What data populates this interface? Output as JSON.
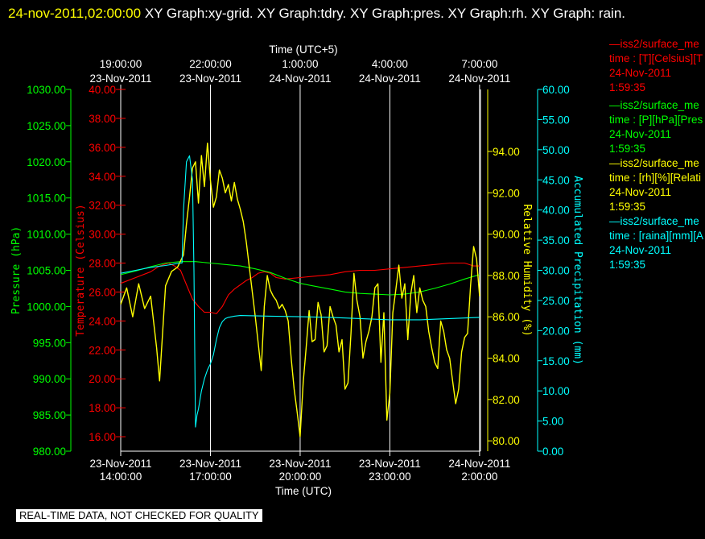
{
  "header": {
    "timestamp": "24-nov-2011,02:00:00",
    "titles_text": "  XY Graph:xy-grid.  XY Graph:tdry.  XY Graph:pres.  XY Graph:rh.  XY Graph: rain."
  },
  "colors": {
    "temperature": "#ff0000",
    "pressure": "#00ff00",
    "humidity": "#ffff00",
    "rain": "#00ffff",
    "axes": "#ffffff",
    "grid": "#ffffff"
  },
  "legend": [
    {
      "line1": "iss2/surface_me",
      "line2": "time : [T][Celsius][T",
      "line3": "24-Nov-2011",
      "line4": "1:59:35",
      "color": "#ff0000"
    },
    {
      "line1": "iss2/surface_me",
      "line2": "time : [P][hPa][Pres",
      "line3": "24-Nov-2011",
      "line4": "1:59:35",
      "color": "#00ff00"
    },
    {
      "line1": "iss2/surface_me",
      "line2": "time : [rh][%][Relati",
      "line3": "24-Nov-2011",
      "line4": "1:59:35",
      "color": "#ffff00"
    },
    {
      "line1": "iss2/surface_me",
      "line2": "time : [raina][mm][A",
      "line3": "24-Nov-2011",
      "line4": "1:59:35",
      "color": "#00ffff"
    }
  ],
  "footer": {
    "text": "REAL-TIME DATA, NOT CHECKED FOR QUALITY"
  },
  "chart_data": {
    "type": "line",
    "xlabel_bottom": "Time (UTC)",
    "xlabel_top": "Time (UTC+5)",
    "x_range_hours": [
      0,
      12.03
    ],
    "x_ticks_bottom": [
      {
        "x": 0,
        "date": "23-Nov-2011",
        "time": "14:00:00"
      },
      {
        "x": 3,
        "date": "23-Nov-2011",
        "time": "17:00:00"
      },
      {
        "x": 6,
        "date": "23-Nov-2011",
        "time": "20:00:00"
      },
      {
        "x": 9,
        "date": "23-Nov-2011",
        "time": "23:00:00"
      },
      {
        "x": 12,
        "date": "24-Nov-2011",
        "time": "2:00:00"
      }
    ],
    "x_ticks_top": [
      {
        "x": 0,
        "time": "19:00:00",
        "date": "23-Nov-2011"
      },
      {
        "x": 3,
        "time": "22:00:00",
        "date": "23-Nov-2011"
      },
      {
        "x": 6,
        "time": "1:00:00",
        "date": "24-Nov-2011"
      },
      {
        "x": 9,
        "time": "4:00:00",
        "date": "24-Nov-2011"
      },
      {
        "x": 12,
        "time": "7:00:00",
        "date": "24-Nov-2011"
      }
    ],
    "axes": {
      "pressure": {
        "label": "Pressure (hPa)",
        "range": [
          980,
          1030
        ],
        "ticks": [
          "980.00",
          "985.00",
          "990.00",
          "995.00",
          "1000.00",
          "1005.00",
          "1010.00",
          "1015.00",
          "1020.00",
          "1025.00",
          "1030.00"
        ]
      },
      "temperature": {
        "label": "Temperature (Celsius)",
        "range": [
          15,
          40
        ],
        "ticks": [
          "16.00",
          "18.00",
          "20.00",
          "22.00",
          "24.00",
          "26.00",
          "28.00",
          "30.00",
          "32.00",
          "34.00",
          "36.00",
          "38.00",
          "40.00"
        ]
      },
      "humidity": {
        "label": "Relative Humidity (%)",
        "range": [
          79.5,
          97
        ],
        "ticks": [
          "80.00",
          "82.00",
          "84.00",
          "86.00",
          "88.00",
          "90.00",
          "92.00",
          "94.00"
        ]
      },
      "rain": {
        "label": "Accumulated Precipitation (mm)",
        "range": [
          0,
          60
        ],
        "ticks": [
          "0.00",
          "5.00",
          "10.00",
          "15.00",
          "20.00",
          "25.00",
          "30.00",
          "35.00",
          "40.00",
          "45.00",
          "50.00",
          "55.00",
          "60.00"
        ]
      }
    },
    "series": [
      {
        "name": "temperature",
        "x": [
          0,
          0.5,
          1.0,
          1.3,
          1.6,
          1.8,
          2.0,
          2.2,
          2.4,
          2.6,
          2.8,
          3.0,
          3.2,
          3.4,
          3.6,
          3.8,
          4.0,
          4.2,
          4.4,
          4.6,
          4.8,
          5.0,
          5.2,
          5.5,
          6.0,
          6.5,
          7.0,
          7.5,
          8.0,
          8.5,
          9.0,
          9.5,
          10.0,
          10.5,
          11.0,
          11.5,
          11.8,
          12.0
        ],
        "y": [
          26.6,
          27.0,
          27.4,
          27.8,
          28.0,
          27.8,
          27.5,
          26.5,
          25.5,
          25.0,
          24.6,
          24.6,
          24.5,
          25.0,
          25.8,
          26.2,
          26.5,
          26.8,
          27.0,
          27.3,
          27.4,
          27.3,
          27.0,
          26.9,
          27.0,
          27.1,
          27.2,
          27.4,
          27.5,
          27.5,
          27.6,
          27.7,
          27.8,
          27.9,
          28.0,
          28.0,
          27.8,
          27.8
        ]
      },
      {
        "name": "pressure",
        "x": [
          0,
          0.5,
          1.0,
          1.5,
          2.0,
          2.5,
          3.0,
          3.5,
          4.0,
          4.5,
          5.0,
          5.5,
          6.0,
          6.5,
          7.0,
          7.5,
          8.0,
          8.5,
          9.0,
          9.5,
          10.0,
          10.5,
          11.0,
          11.5,
          12.0
        ],
        "y": [
          1004.4,
          1004.9,
          1005.5,
          1006.0,
          1006.2,
          1006.2,
          1006.0,
          1005.8,
          1005.6,
          1005.2,
          1004.7,
          1003.9,
          1003.2,
          1002.8,
          1002.4,
          1002.0,
          1001.8,
          1001.7,
          1001.6,
          1001.7,
          1002.0,
          1002.5,
          1003.1,
          1003.8,
          1004.4
        ]
      },
      {
        "name": "humidity",
        "x": [
          0,
          0.2,
          0.4,
          0.6,
          0.8,
          1.0,
          1.2,
          1.3,
          1.5,
          1.7,
          1.9,
          2.1,
          2.2,
          2.3,
          2.4,
          2.5,
          2.6,
          2.7,
          2.8,
          2.9,
          3.0,
          3.1,
          3.2,
          3.3,
          3.4,
          3.5,
          3.6,
          3.7,
          3.8,
          3.9,
          4.0,
          4.1,
          4.2,
          4.3,
          4.4,
          4.5,
          4.6,
          4.7,
          4.8,
          4.9,
          5.0,
          5.1,
          5.2,
          5.3,
          5.4,
          5.5,
          5.6,
          5.7,
          5.8,
          5.9,
          6.0,
          6.1,
          6.2,
          6.3,
          6.4,
          6.5,
          6.6,
          6.7,
          6.8,
          6.9,
          7.0,
          7.1,
          7.2,
          7.3,
          7.4,
          7.5,
          7.6,
          7.7,
          7.8,
          7.9,
          8.0,
          8.1,
          8.2,
          8.3,
          8.4,
          8.5,
          8.6,
          8.7,
          8.8,
          8.9,
          9.0,
          9.1,
          9.2,
          9.3,
          9.4,
          9.5,
          9.6,
          9.7,
          9.8,
          9.9,
          10.0,
          10.1,
          10.2,
          10.3,
          10.4,
          10.5,
          10.6,
          10.7,
          10.8,
          10.9,
          11.0,
          11.1,
          11.2,
          11.3,
          11.4,
          11.5,
          11.6,
          11.7,
          11.8,
          11.9,
          12.0
        ],
        "y": [
          86.6,
          87.4,
          86.0,
          87.6,
          86.4,
          87.0,
          84.5,
          82.9,
          87.5,
          88.2,
          88.4,
          89.0,
          90.5,
          91.8,
          93.2,
          93.5,
          91.5,
          93.8,
          92.3,
          94.4,
          92.6,
          91.3,
          91.8,
          93.1,
          92.7,
          92.0,
          92.4,
          91.6,
          92.5,
          91.7,
          91.2,
          90.6,
          89.6,
          88.4,
          87.2,
          86.0,
          84.7,
          83.4,
          86.5,
          88.0,
          87.3,
          87.0,
          86.8,
          86.4,
          86.6,
          86.3,
          85.8,
          84.0,
          82.5,
          81.4,
          80.2,
          82.8,
          84.5,
          86.3,
          84.8,
          84.9,
          86.7,
          86.1,
          84.3,
          84.6,
          86.5,
          86.0,
          85.6,
          84.3,
          84.9,
          82.5,
          82.8,
          85.2,
          88.1,
          86.8,
          86.0,
          84.0,
          84.8,
          85.3,
          86.0,
          87.4,
          87.6,
          83.8,
          86.2,
          81.0,
          82.3,
          86.2,
          87.3,
          88.5,
          86.9,
          87.6,
          84.9,
          87.1,
          88.0,
          86.2,
          87.4,
          86.8,
          86.5,
          85.3,
          84.5,
          83.8,
          83.5,
          85.8,
          85.3,
          84.4,
          84.0,
          82.9,
          81.8,
          82.5,
          84.3,
          85.0,
          85.2,
          87.5,
          89.4,
          88.8,
          87.0
        ]
      },
      {
        "name": "rain",
        "x": [
          0,
          0.5,
          1.0,
          1.5,
          1.75,
          1.95,
          2.05,
          2.1,
          2.2,
          2.3,
          2.4,
          2.45,
          2.5,
          2.55,
          2.6,
          2.7,
          2.8,
          2.9,
          3.0,
          3.1,
          3.2,
          3.3,
          3.4,
          3.5,
          3.6,
          3.8,
          4.0,
          5.0,
          6.0,
          7.0,
          8.0,
          9.0,
          10.0,
          11.0,
          12.0
        ],
        "y": [
          29.5,
          30.0,
          30.5,
          30.8,
          31.0,
          31.2,
          31.2,
          40.0,
          48.0,
          49.0,
          45.0,
          30.0,
          4.0,
          6.0,
          7.0,
          10.0,
          12.0,
          13.5,
          14.5,
          16.0,
          18.5,
          20.5,
          21.5,
          22.0,
          22.2,
          22.4,
          22.5,
          22.4,
          22.3,
          22.2,
          22.0,
          21.8,
          21.8,
          22.0,
          22.2
        ]
      }
    ]
  }
}
